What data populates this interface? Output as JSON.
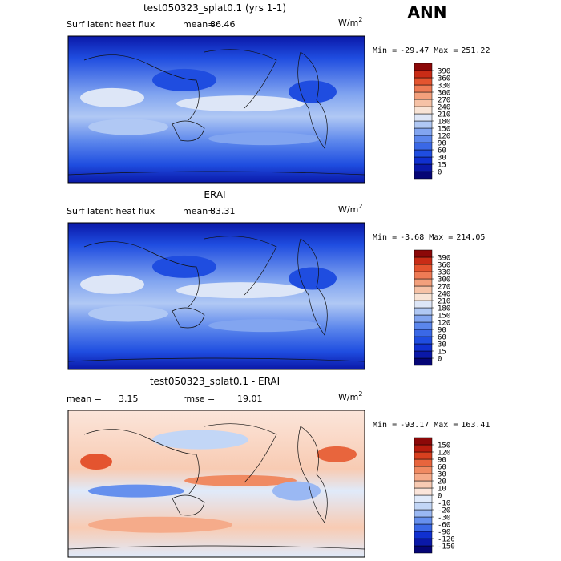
{
  "title": "ANN",
  "panels": [
    {
      "title": "test050323_splat0.1 (yrs 1-1)",
      "variable": "Surf latent heat flux",
      "stat1_label": "mean=",
      "stat1": 86.46,
      "units_base": "W/m",
      "units_power": "2",
      "min_label": "Min =",
      "min": -29.47,
      "max_label": "Max =",
      "max": 251.22,
      "colorbar": {
        "levels": [
          0,
          15,
          30,
          60,
          90,
          120,
          150,
          180,
          210,
          240,
          270,
          300,
          330,
          360,
          390
        ],
        "colors": [
          "#050575",
          "#0a18a8",
          "#1030d0",
          "#1f4de0",
          "#3a68e6",
          "#5b86ec",
          "#82a5f0",
          "#b0c8f4",
          "#dde6f7",
          "#f8e4d6",
          "#f6c2a6",
          "#f3a07c",
          "#ee7b55",
          "#e4542f",
          "#c92c16",
          "#8c0808"
        ]
      }
    },
    {
      "title": "ERAI",
      "variable": "Surf latent heat flux",
      "stat1_label": "mean=",
      "stat1": 83.31,
      "units_base": "W/m",
      "units_power": "2",
      "min_label": "Min =",
      "min": -3.68,
      "max_label": "Max =",
      "max": 214.05,
      "colorbar": {
        "levels": [
          0,
          15,
          30,
          60,
          90,
          120,
          150,
          180,
          210,
          240,
          270,
          300,
          330,
          360,
          390
        ],
        "colors": [
          "#050575",
          "#0a18a8",
          "#1030d0",
          "#1f4de0",
          "#3a68e6",
          "#5b86ec",
          "#82a5f0",
          "#b0c8f4",
          "#dde6f7",
          "#f8e4d6",
          "#f6c2a6",
          "#f3a07c",
          "#ee7b55",
          "#e4542f",
          "#c92c16",
          "#8c0808"
        ]
      }
    },
    {
      "title": "test050323_splat0.1 - ERAI",
      "stat1_label": "mean =",
      "stat1": 3.15,
      "stat2_label": "rmse =",
      "stat2": 19.01,
      "units_base": "W/m",
      "units_power": "2",
      "min_label": "Min =",
      "min": -93.17,
      "max_label": "Max =",
      "max": 163.41,
      "colorbar": {
        "levels": [
          -150,
          -120,
          -90,
          -60,
          -30,
          -20,
          -10,
          0,
          10,
          20,
          30,
          60,
          90,
          120,
          150
        ],
        "colors": [
          "#050575",
          "#0a18a8",
          "#1030d0",
          "#3a68e6",
          "#6690ee",
          "#9ab8f3",
          "#c2d6f6",
          "#e0eafa",
          "#fbe5da",
          "#f8cbb3",
          "#f5ab8a",
          "#f08a62",
          "#e8653d",
          "#d8401f",
          "#b81c0e",
          "#8c0808"
        ]
      }
    }
  ]
}
